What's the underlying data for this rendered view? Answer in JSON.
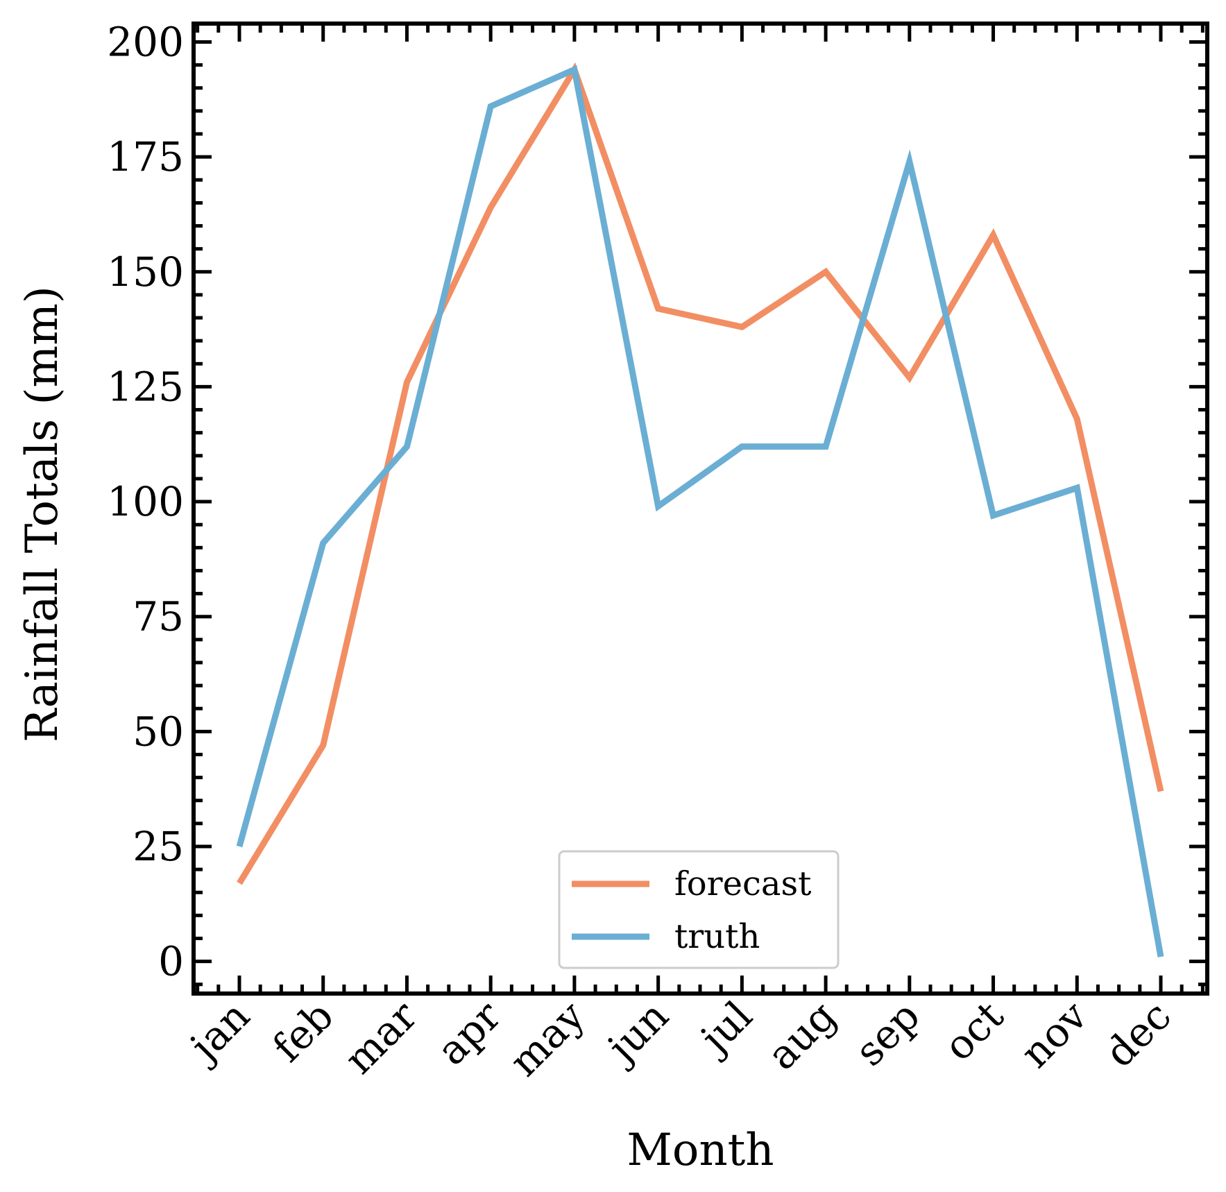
{
  "chart_data": {
    "type": "line",
    "xlabel": "Month",
    "ylabel": "Rainfall Totals (mm)",
    "categories": [
      "jan",
      "feb",
      "mar",
      "apr",
      "may",
      "jun",
      "jul",
      "aug",
      "sep",
      "oct",
      "nov",
      "dec"
    ],
    "ylim": [
      -7,
      204
    ],
    "yticks": [
      0,
      25,
      50,
      75,
      100,
      125,
      150,
      175,
      200
    ],
    "grid": false,
    "legend": {
      "placement": "lower-center"
    },
    "series": [
      {
        "name": "forecast",
        "color": "#f28e63",
        "values": [
          17,
          47,
          126,
          164,
          194,
          142,
          138,
          150,
          127,
          158,
          118,
          37
        ]
      },
      {
        "name": "truth",
        "color": "#6aaed4",
        "values": [
          25,
          91,
          112,
          186,
          194,
          99,
          112,
          112,
          174,
          97,
          103,
          1
        ]
      }
    ]
  }
}
